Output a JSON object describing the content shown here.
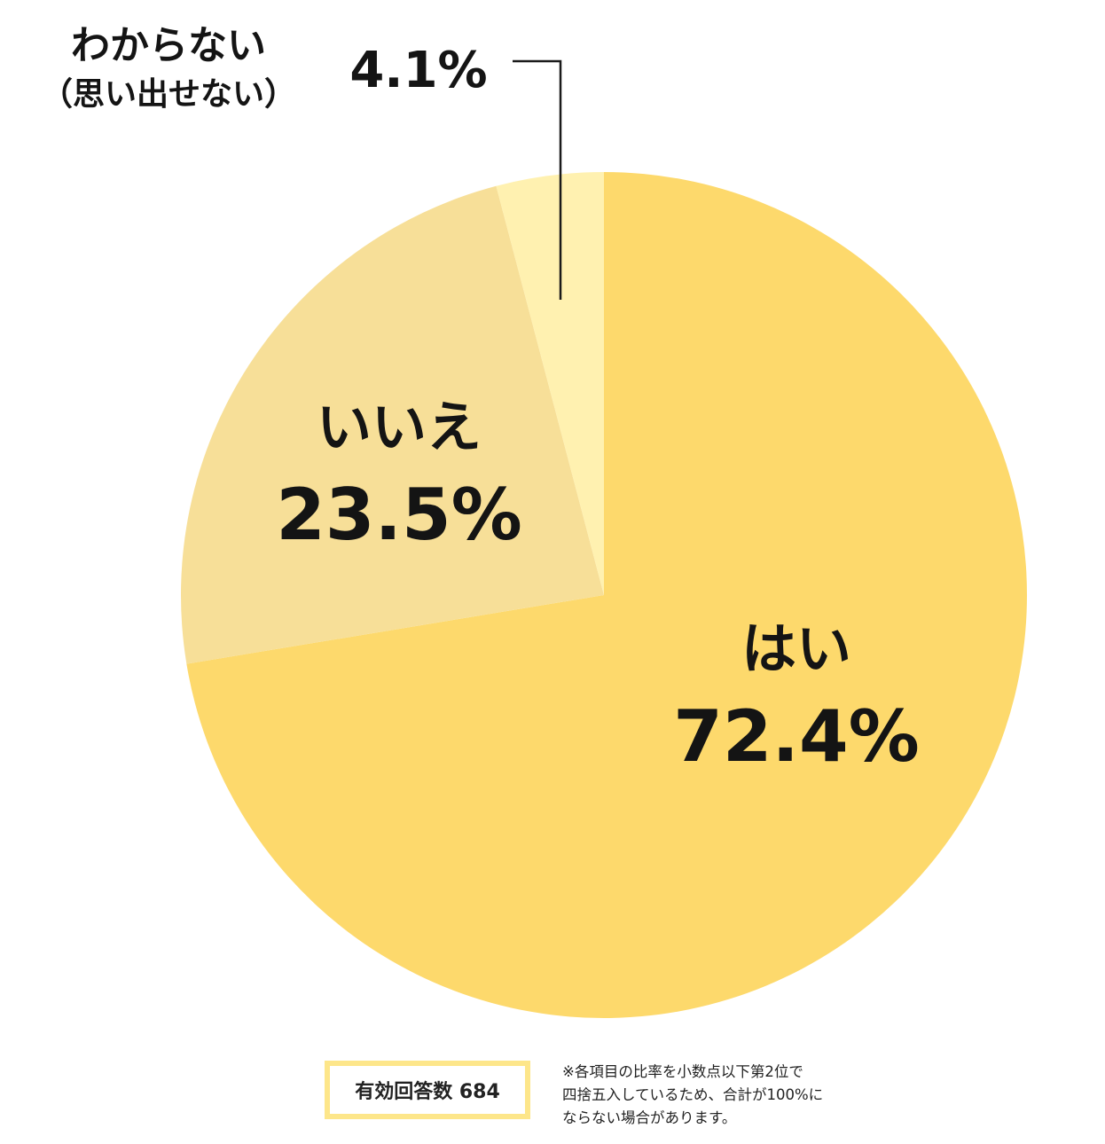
{
  "chart_data": {
    "type": "pie",
    "slices": [
      {
        "label": "はい",
        "value": 72.4,
        "display": "72.4%",
        "color": "#fdd96c"
      },
      {
        "label": "いいえ",
        "value": 23.5,
        "display": "23.5%",
        "color": "#f7df98"
      },
      {
        "label": "わからない",
        "sublabel": "（思い出せない）",
        "value": 4.1,
        "display": "4.1%",
        "color": "#fff1b0"
      }
    ]
  },
  "footer": {
    "count_label": "有効回答数 684",
    "note_lines": [
      "※各項目の比率を小数点以下第2位で",
      "四捨五入しているため、合計が100%に",
      "ならない場合があります。"
    ]
  }
}
